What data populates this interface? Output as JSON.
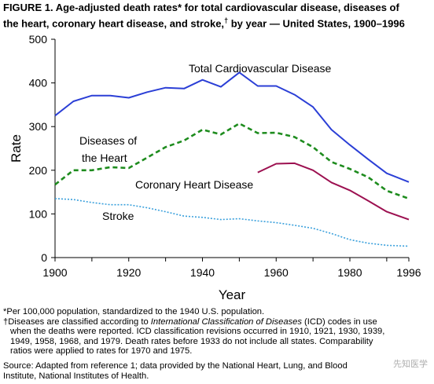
{
  "figure": {
    "title_line1": "FIGURE 1. Age-adjusted death rates* for total cardiovascular disease, diseases of",
    "title_line2": "the heart, coronary heart disease, and stroke,",
    "title_dagger": "†",
    "title_line2_end": " by year — United States, 1900–1996"
  },
  "chart_data": {
    "type": "line",
    "xlabel": "Year",
    "ylabel": "Rate",
    "xlim": [
      1900,
      1996
    ],
    "ylim": [
      0,
      500
    ],
    "x_ticks": [
      "1900",
      "1920",
      "1940",
      "1960",
      "1980",
      "1996"
    ],
    "x_tick_values": [
      1900,
      1920,
      1940,
      1960,
      1980,
      1996
    ],
    "y_ticks": [
      "0",
      "100",
      "200",
      "300",
      "400",
      "500"
    ],
    "y_tick_values": [
      0,
      100,
      200,
      300,
      400,
      500
    ],
    "grid": false,
    "series": [
      {
        "name": "Total Cardiovascular Disease",
        "color": "#2b3fd6",
        "style": "solid",
        "x": [
          1900,
          1905,
          1910,
          1915,
          1920,
          1925,
          1930,
          1935,
          1940,
          1945,
          1950,
          1955,
          1960,
          1965,
          1970,
          1975,
          1980,
          1985,
          1990,
          1996
        ],
        "y": [
          325,
          358,
          371,
          371,
          366,
          379,
          389,
          387,
          407,
          391,
          424,
          393,
          393,
          373,
          345,
          293,
          258,
          225,
          193,
          173
        ]
      },
      {
        "name": "Diseases of the Heart",
        "color": "#1e8c1e",
        "style": "dashed",
        "x": [
          1900,
          1905,
          1910,
          1915,
          1920,
          1925,
          1930,
          1935,
          1940,
          1945,
          1950,
          1955,
          1960,
          1965,
          1970,
          1975,
          1980,
          1985,
          1990,
          1996
        ],
        "y": [
          167,
          200,
          200,
          207,
          205,
          229,
          253,
          268,
          293,
          282,
          307,
          285,
          286,
          276,
          253,
          219,
          203,
          184,
          153,
          135
        ]
      },
      {
        "name": "Coronary Heart Disease",
        "color": "#9c1050",
        "style": "solid",
        "x": [
          1955,
          1960,
          1965,
          1970,
          1975,
          1980,
          1985,
          1990,
          1996
        ],
        "y": [
          195,
          215,
          216,
          200,
          172,
          154,
          130,
          105,
          87
        ]
      },
      {
        "name": "Stroke",
        "color": "#3aa0dc",
        "style": "dotted",
        "x": [
          1900,
          1905,
          1910,
          1915,
          1920,
          1925,
          1930,
          1935,
          1940,
          1945,
          1950,
          1955,
          1960,
          1965,
          1970,
          1975,
          1980,
          1985,
          1990,
          1996
        ],
        "y": [
          135,
          133,
          126,
          121,
          121,
          114,
          105,
          95,
          92,
          87,
          89,
          84,
          80,
          74,
          67,
          55,
          41,
          33,
          28,
          26
        ]
      }
    ],
    "annotations": [
      {
        "text": "Total Cardiovascular Disease",
        "series": 0
      },
      {
        "text": "Diseases of",
        "series": 1
      },
      {
        "text": "the Heart",
        "series": 1
      },
      {
        "text": "Coronary Heart Disease",
        "series": 2
      },
      {
        "text": "Stroke",
        "series": 3
      }
    ]
  },
  "footnotes": {
    "star": "*Per 100,000 population, standardized to the 1940 U.S. population.",
    "dagger_prefix": "†Diseases are classified according to ",
    "dagger_italic": "International Classification of Diseases",
    "dagger_rest": " (ICD) codes in use",
    "dagger_line2": "when the deaths were reported. ICD classification revisions occurred in 1910, 1921, 1930, 1939,",
    "dagger_line3": "1949, 1958, 1968, and 1979. Death rates before 1933 do not include all states. Comparability",
    "dagger_line4": "ratios were applied to rates for 1970 and 1975."
  },
  "source": {
    "line1": "Source: Adapted from reference 1; data provided by the National Heart, Lung, and Blood",
    "line2": "Institute, National Institutes of Health."
  },
  "watermark": {
    "text": "先知医学"
  }
}
